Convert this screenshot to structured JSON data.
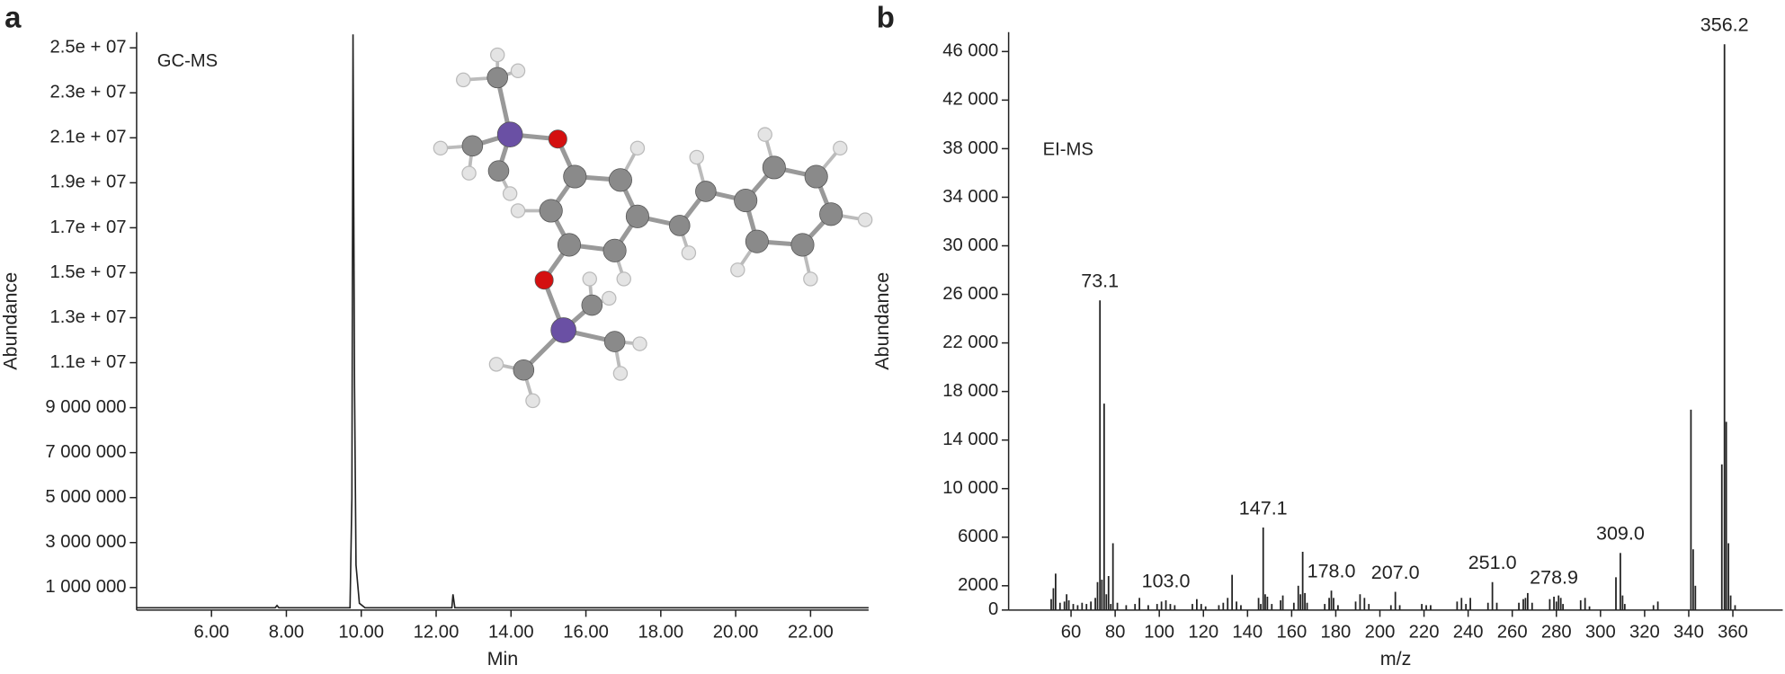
{
  "chart_data": [
    {
      "type": "line",
      "panel": "a",
      "title": "GC-MS",
      "xlabel": "Min",
      "ylabel": "Abundance",
      "x": [
        4,
        7.7,
        7.75,
        7.8,
        9.7,
        9.75,
        9.78,
        9.82,
        9.86,
        9.95,
        10.1,
        12.42,
        12.45,
        12.5,
        23.55
      ],
      "values": [
        100000,
        100000,
        200000,
        100000,
        100000,
        5000000,
        25600000,
        10000000,
        2000000,
        300000,
        100000,
        100000,
        700000,
        100000,
        100000
      ],
      "color": "#222222",
      "xlim": [
        4,
        23.55
      ],
      "xticks": [
        {
          "value": 6,
          "label": "6.00"
        },
        {
          "value": 8,
          "label": "8.00"
        },
        {
          "value": 10,
          "label": "10.00"
        },
        {
          "value": 12,
          "label": "12.00"
        },
        {
          "value": 14,
          "label": "14.00"
        },
        {
          "value": 16,
          "label": "16.00"
        },
        {
          "value": 18,
          "label": "18.00"
        },
        {
          "value": 20,
          "label": "20.00"
        },
        {
          "value": 22,
          "label": "22.00"
        }
      ],
      "ylim": [
        0,
        25700000
      ],
      "yticks": [
        {
          "value": 1000000,
          "label": "1 000 000"
        },
        {
          "value": 3000000,
          "label": "3 000 000"
        },
        {
          "value": 5000000,
          "label": "5 000 000"
        },
        {
          "value": 7000000,
          "label": "7 000 000"
        },
        {
          "value": 9000000,
          "label": "9 000 000"
        },
        {
          "value": 11000000,
          "label": "1.1e + 07"
        },
        {
          "value": 13000000,
          "label": "1.3e + 07"
        },
        {
          "value": 15000000,
          "label": "1.5e + 07"
        },
        {
          "value": 17000000,
          "label": "1.7e + 07"
        },
        {
          "value": 19000000,
          "label": "1.9e + 07"
        },
        {
          "value": 21000000,
          "label": "2.1e + 07"
        },
        {
          "value": 23000000,
          "label": "2.3e + 07"
        },
        {
          "value": 25000000,
          "label": "2.5e + 07"
        }
      ]
    },
    {
      "type": "bar",
      "panel": "b",
      "title": "EI-MS",
      "xlabel": "m/z",
      "ylabel": "Abundance",
      "x": [
        51,
        52,
        53,
        55,
        57,
        58,
        59,
        61,
        63,
        65,
        67,
        69,
        71,
        72,
        73.1,
        74,
        75,
        76,
        77,
        78,
        79,
        81,
        85,
        89,
        91,
        95,
        99,
        101,
        103,
        105,
        107,
        115,
        117,
        119,
        121,
        127,
        129,
        131,
        133,
        135,
        137,
        145,
        146,
        147.1,
        148,
        149,
        151,
        155,
        156,
        161,
        163,
        164,
        165,
        166,
        167,
        175,
        177,
        178,
        179,
        181,
        189,
        191,
        193,
        195,
        205,
        207,
        209,
        219,
        221,
        223,
        235,
        237,
        239,
        241,
        249,
        251,
        253,
        263,
        265,
        266,
        267,
        269,
        277,
        278.9,
        280,
        281,
        282,
        283,
        291,
        293,
        295,
        307,
        309,
        310,
        311,
        324,
        326,
        341,
        342,
        343,
        355,
        356.2,
        357,
        358,
        359,
        361
      ],
      "values": [
        900,
        1800,
        3000,
        600,
        700,
        1300,
        800,
        500,
        400,
        600,
        500,
        700,
        1000,
        2300,
        25500,
        2500,
        17000,
        1300,
        2800,
        500,
        5500,
        600,
        400,
        500,
        1000,
        400,
        500,
        700,
        800,
        500,
        400,
        500,
        900,
        500,
        300,
        400,
        600,
        1000,
        2900,
        700,
        400,
        1000,
        500,
        6800,
        1300,
        1100,
        500,
        800,
        1200,
        600,
        2000,
        1300,
        4800,
        1400,
        600,
        500,
        1000,
        1600,
        1000,
        400,
        700,
        1300,
        1000,
        500,
        400,
        1500,
        400,
        500,
        400,
        400,
        700,
        1000,
        500,
        1000,
        600,
        2300,
        600,
        600,
        900,
        1000,
        1400,
        600,
        900,
        1100,
        700,
        1200,
        1000,
        500,
        800,
        1000,
        300,
        2700,
        4700,
        1200,
        500,
        400,
        700,
        16500,
        5000,
        2000,
        12000,
        46600,
        15500,
        5500,
        1200,
        400
      ],
      "color": "#222222",
      "annotations": [
        {
          "x": 73.1,
          "label": "73.1"
        },
        {
          "x": 103,
          "label": "103.0"
        },
        {
          "x": 147.1,
          "label": "147.1"
        },
        {
          "x": 178,
          "label": "178.0"
        },
        {
          "x": 207,
          "label": "207.0"
        },
        {
          "x": 251,
          "label": "251.0"
        },
        {
          "x": 278.9,
          "label": "278.9"
        },
        {
          "x": 309,
          "label": "309.0"
        },
        {
          "x": 356.2,
          "label": "356.2"
        }
      ],
      "xlim": [
        31.7,
        382.6
      ],
      "xticks": [
        60,
        80,
        100,
        120,
        140,
        160,
        180,
        200,
        220,
        240,
        260,
        280,
        300,
        320,
        340,
        360
      ],
      "ylim": [
        0,
        47600
      ],
      "yticks": [
        0,
        2000,
        6000,
        {
          "value": 10000,
          "label": "10 000"
        },
        {
          "value": 14000,
          "label": "14 000"
        },
        {
          "value": 18000,
          "label": "18 000"
        },
        {
          "value": 22000,
          "label": "22 000"
        },
        {
          "value": 26000,
          "label": "26 000"
        },
        {
          "value": 30000,
          "label": "30 000"
        },
        {
          "value": 34000,
          "label": "34 000"
        },
        {
          "value": 38000,
          "label": "38 000"
        },
        {
          "value": 42000,
          "label": "42 000"
        },
        {
          "value": 46000,
          "label": "46 000"
        }
      ]
    }
  ]
}
